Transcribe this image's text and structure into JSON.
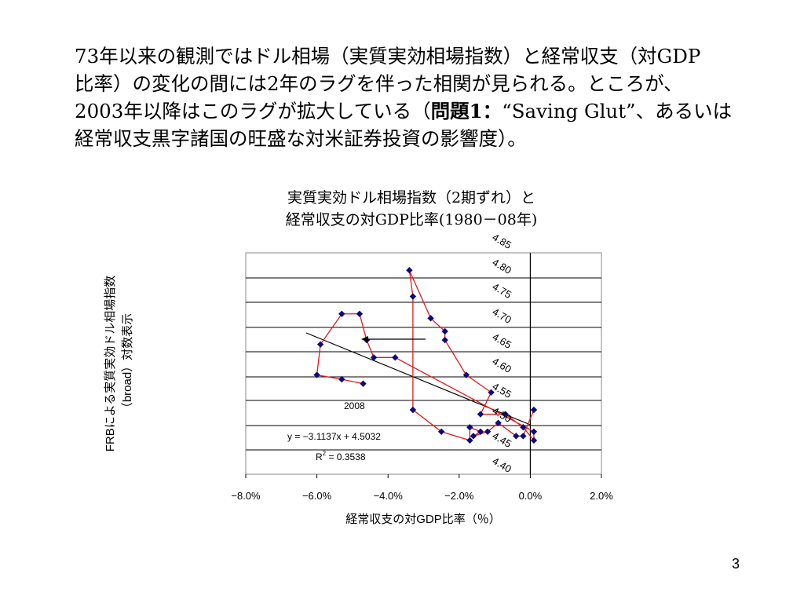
{
  "slide": {
    "line1": "73年以来の観測ではドル相場（実質実効相場指数）と経常収支（対GDP",
    "line2": "比率）の変化の間には2年のラグを伴った相関が見られる。ところが、",
    "line3_a": "2003年以降はこのラグが拡大している（",
    "line3_b": "問題1：",
    "line3_c": "“Saving Glut”、あるいは",
    "line4": "経常収支黒字諸国の旺盛な対米証券投資の影響度）。",
    "page_number": "3"
  },
  "chart_data": {
    "type": "scatter",
    "title_line1": "実質実効ドル相場指数（2期ずれ）と",
    "title_line2": "経常収支の対GDP比率(1980－08年)",
    "xlabel": "経常収支の対GDP比率（％）",
    "ylabel_line1": "FRBによる実質実効ドル相場指数",
    "ylabel_line2": "（broad）対数表示",
    "xlim": [
      -8.0,
      2.0
    ],
    "ylim": [
      4.4,
      4.85
    ],
    "x_ticks": [
      -8.0,
      -6.0,
      -4.0,
      -2.0,
      0.0,
      2.0
    ],
    "x_tick_labels": [
      "−8.0%",
      "−6.0%",
      "−4.0%",
      "−2.0%",
      "0.0%",
      "2.0%"
    ],
    "y_ticks": [
      4.4,
      4.45,
      4.5,
      4.55,
      4.6,
      4.65,
      4.7,
      4.75,
      4.8,
      4.85
    ],
    "y_tick_labels": [
      "4.40",
      "4.45",
      "4.50",
      "4.55",
      "4.60",
      "4.65",
      "4.70",
      "4.75",
      "4.80",
      "4.85"
    ],
    "grid": "horizontal",
    "series": [
      {
        "color": "#e31a1c",
        "marker_color": "#0b0b7a",
        "points": [
          [
            0.1,
            4.49
          ],
          [
            -0.2,
            4.43
          ],
          [
            -0.4,
            4.43
          ],
          [
            -0.9,
            4.46
          ],
          [
            -1.2,
            4.44
          ],
          [
            -1.6,
            4.43
          ],
          [
            -1.4,
            4.44
          ],
          [
            -1.7,
            4.45
          ],
          [
            -1.7,
            4.42
          ],
          [
            -2.5,
            4.44
          ],
          [
            -3.3,
            4.49
          ],
          [
            -3.3,
            4.75
          ],
          [
            -3.4,
            4.81
          ],
          [
            -2.8,
            4.7
          ],
          [
            -2.4,
            4.67
          ],
          [
            -2.4,
            4.65
          ],
          [
            -1.8,
            4.57
          ],
          [
            -1.1,
            4.53
          ],
          [
            -1.4,
            4.48
          ],
          [
            -0.7,
            4.48
          ],
          [
            -0.2,
            4.45
          ],
          [
            0.1,
            4.42
          ],
          [
            0.1,
            4.44
          ],
          [
            -3.8,
            4.61
          ],
          [
            -4.4,
            4.61
          ],
          [
            -4.6,
            4.65
          ],
          [
            -4.8,
            4.71
          ],
          [
            -5.3,
            4.71
          ],
          [
            -5.9,
            4.64
          ],
          [
            -6.0,
            4.57
          ],
          [
            -5.3,
            4.56
          ],
          [
            -4.7,
            4.55
          ]
        ]
      }
    ],
    "trendline": {
      "slope": -3.1137,
      "intercept": 4.5032,
      "x_range": [
        -6.3,
        0.0
      ]
    },
    "annotations": {
      "equation": "y = −3.1137x + 4.5032",
      "r2_label": "R",
      "r2_sup": "2",
      "r2_value": " = 0.3538",
      "year_label": "2008"
    },
    "arrow": {
      "from": [
        -2.9,
        4.66
      ],
      "to": [
        -4.8,
        4.66
      ]
    }
  }
}
